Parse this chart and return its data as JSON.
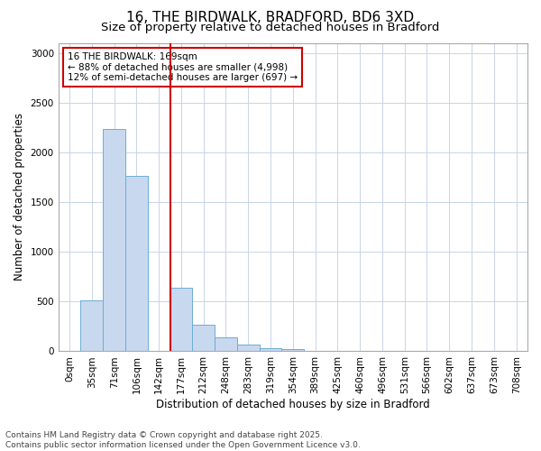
{
  "title_line1": "16, THE BIRDWALK, BRADFORD, BD6 3XD",
  "title_line2": "Size of property relative to detached houses in Bradford",
  "xlabel": "Distribution of detached houses by size in Bradford",
  "ylabel": "Number of detached properties",
  "bar_labels": [
    "0sqm",
    "35sqm",
    "71sqm",
    "106sqm",
    "142sqm",
    "177sqm",
    "212sqm",
    "248sqm",
    "283sqm",
    "319sqm",
    "354sqm",
    "389sqm",
    "425sqm",
    "460sqm",
    "496sqm",
    "531sqm",
    "566sqm",
    "602sqm",
    "637sqm",
    "673sqm",
    "708sqm"
  ],
  "bar_values": [
    0,
    510,
    2230,
    1760,
    0,
    635,
    265,
    140,
    70,
    30,
    20,
    0,
    0,
    0,
    0,
    0,
    0,
    0,
    0,
    0,
    0
  ],
  "bar_color": "#c8d8ee",
  "bar_edge_color": "#6baed6",
  "vline_x_idx": 5,
  "vline_color": "#cc0000",
  "annotation_text": "16 THE BIRDWALK: 169sqm\n← 88% of detached houses are smaller (4,998)\n12% of semi-detached houses are larger (697) →",
  "annotation_box_color": "#cc0000",
  "ylim": [
    0,
    3100
  ],
  "yticks": [
    0,
    500,
    1000,
    1500,
    2000,
    2500,
    3000
  ],
  "footer_line1": "Contains HM Land Registry data © Crown copyright and database right 2025.",
  "footer_line2": "Contains public sector information licensed under the Open Government Licence v3.0.",
  "bg_color": "#ffffff",
  "grid_color": "#c8d4e8",
  "title_fontsize": 11,
  "subtitle_fontsize": 9.5,
  "axis_label_fontsize": 8.5,
  "tick_fontsize": 7.5,
  "annotation_fontsize": 7.5,
  "footer_fontsize": 6.5
}
